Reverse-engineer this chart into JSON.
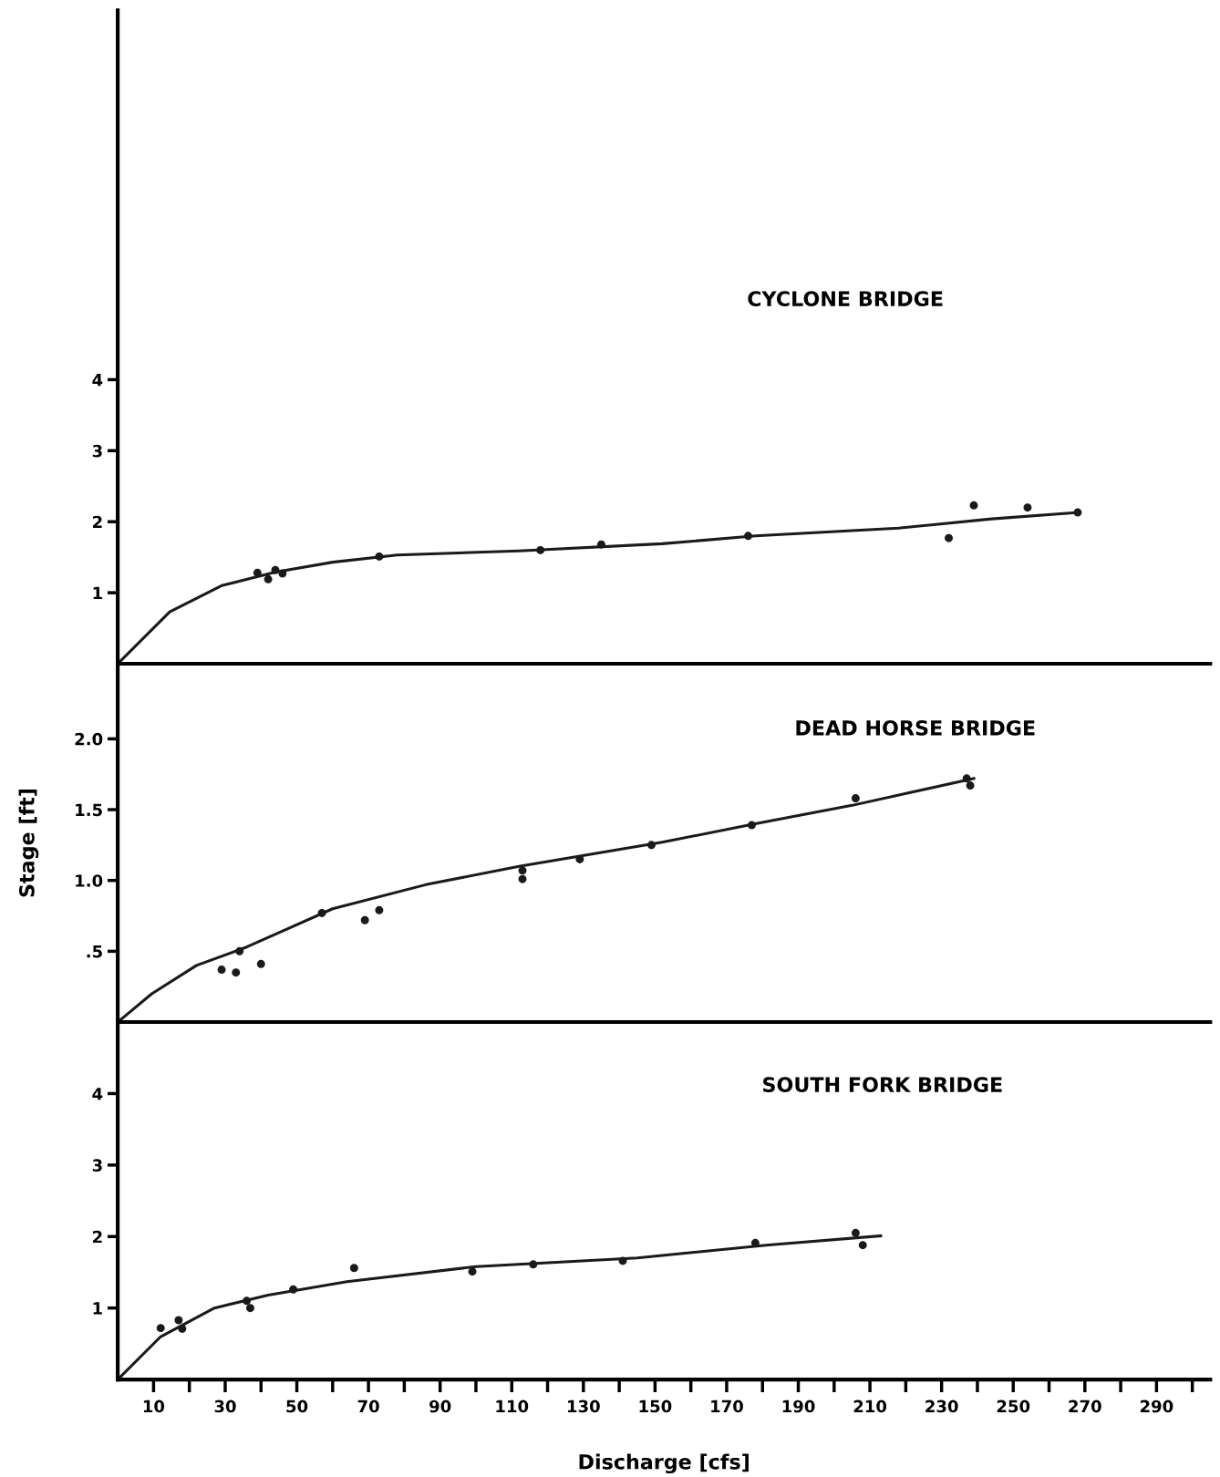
{
  "chart_data": [
    {
      "type": "scatter",
      "title": "CYCLONE BRIDGE",
      "xlim": [
        0,
        305
      ],
      "ylim": [
        0,
        9.2
      ],
      "yticks": [
        1,
        2,
        3,
        4
      ],
      "tick_labels": "y",
      "grid": false,
      "legend": false,
      "series": [
        {
          "marker": "circle",
          "color": "#1a1a1a",
          "x": [
            39,
            42,
            44,
            46,
            73,
            118,
            135,
            176,
            232,
            239,
            254,
            268
          ],
          "values": [
            1.28,
            1.19,
            1.32,
            1.27,
            1.51,
            1.6,
            1.68,
            1.8,
            1.77,
            2.23,
            2.2,
            2.13
          ]
        },
        {
          "type": "line",
          "color": "#1a1a1a",
          "x": [
            0,
            14.5,
            29,
            44,
            60,
            78,
            112,
            152,
            178,
            218,
            244,
            268
          ],
          "values": [
            0,
            0.73,
            1.1,
            1.29,
            1.43,
            1.53,
            1.59,
            1.69,
            1.8,
            1.91,
            2.04,
            2.13
          ]
        }
      ]
    },
    {
      "type": "scatter",
      "title": "DEAD HORSE BRIDGE",
      "ylabel": "Stage [ft]",
      "xlim": [
        0,
        305
      ],
      "ylim": [
        0,
        2.53
      ],
      "yticks": [
        {
          "value": 0.5,
          "label": ".5"
        },
        {
          "value": 1.0,
          "label": "1.0"
        },
        {
          "value": 1.5,
          "label": "1.5"
        },
        {
          "value": 2.0,
          "label": "2.0"
        }
      ],
      "tick_labels": "y",
      "grid": false,
      "legend": false,
      "series": [
        {
          "marker": "circle",
          "color": "#1a1a1a",
          "x": [
            29,
            33,
            34,
            40,
            57,
            69,
            73,
            113,
            113,
            129,
            149,
            177,
            206,
            237,
            238
          ],
          "values": [
            0.37,
            0.35,
            0.5,
            0.41,
            0.77,
            0.72,
            0.79,
            1.01,
            1.07,
            1.15,
            1.25,
            1.39,
            1.58,
            1.72,
            1.67
          ]
        },
        {
          "type": "line",
          "color": "#1a1a1a",
          "x": [
            0,
            9.5,
            22,
            36,
            60,
            86,
            112,
            152,
            178,
            205,
            239
          ],
          "values": [
            0,
            0.2,
            0.4,
            0.53,
            0.8,
            0.97,
            1.1,
            1.27,
            1.4,
            1.53,
            1.72
          ]
        }
      ]
    },
    {
      "type": "scatter",
      "title": "SOUTH FORK BRIDGE",
      "xlabel": "Discharge [cfs]",
      "xlim": [
        0,
        305
      ],
      "ylim": [
        0,
        5
      ],
      "yticks": [
        1,
        2,
        3,
        4
      ],
      "grid": false,
      "legend": false,
      "xticks": [
        10,
        {
          "value": 20,
          "label": null
        },
        30,
        {
          "value": 40,
          "label": null
        },
        50,
        {
          "value": 60,
          "label": null
        },
        70,
        {
          "value": 80,
          "label": null
        },
        90,
        {
          "value": 100,
          "label": null
        },
        110,
        {
          "value": 120,
          "label": null
        },
        130,
        {
          "value": 140,
          "label": null
        },
        150,
        {
          "value": 160,
          "label": null
        },
        170,
        {
          "value": 180,
          "label": null
        },
        190,
        {
          "value": 200,
          "label": null
        },
        210,
        {
          "value": 220,
          "label": null
        },
        230,
        {
          "value": 240,
          "label": null
        },
        250,
        {
          "value": 260,
          "label": null
        },
        270,
        {
          "value": 280,
          "label": null
        },
        290,
        {
          "value": 300,
          "label": null
        }
      ],
      "series": [
        {
          "marker": "circle",
          "color": "#1a1a1a",
          "x": [
            12,
            17,
            18,
            36,
            37,
            49,
            66,
            99,
            116,
            141,
            178,
            206,
            208
          ],
          "values": [
            0.72,
            0.83,
            0.71,
            1.1,
            1.0,
            1.26,
            1.56,
            1.51,
            1.61,
            1.66,
            1.91,
            2.05,
            1.88
          ]
        },
        {
          "type": "line",
          "color": "#1a1a1a",
          "x": [
            0,
            12,
            27,
            42,
            64,
            100,
            145,
            181,
            213
          ],
          "values": [
            0,
            0.6,
            1.0,
            1.18,
            1.37,
            1.58,
            1.7,
            1.88,
            2.01
          ]
        }
      ]
    }
  ]
}
